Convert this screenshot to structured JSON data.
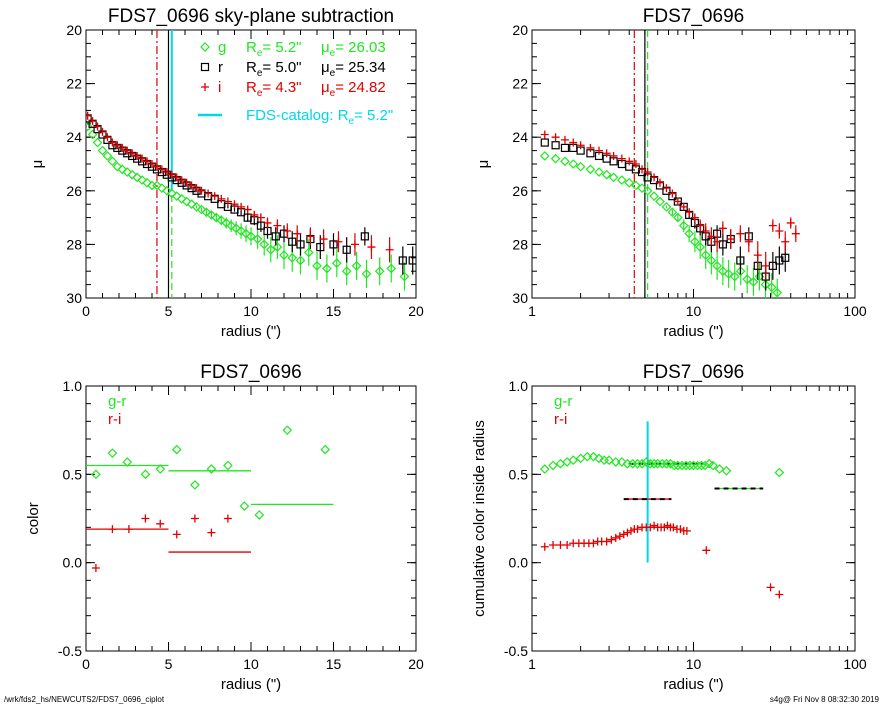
{
  "colors": {
    "g": "#22e622",
    "r": "#000000",
    "i": "#e00000",
    "fds": "#00d8e8",
    "axis": "#000000"
  },
  "footer": {
    "left": "/wrk/fds2_hs/NEWCUTS2/FDS7_0696_ciplot",
    "right": "s4g@  Fri Nov  8 08:32:30 2019"
  },
  "chart_data": [
    {
      "id": "profile_linear",
      "type": "scatter",
      "title": "FDS7_0696 sky-plane subtraction",
      "xlabel": "radius (\")",
      "ylabel": "μ",
      "xscale": "linear",
      "xlim": [
        0,
        20
      ],
      "ylim": [
        30,
        20
      ],
      "xticks": [
        0,
        5,
        10,
        15,
        20
      ],
      "xticklabels": [
        "0",
        "5",
        "10",
        "15",
        "20"
      ],
      "yticks": [
        20,
        22,
        24,
        26,
        28,
        30
      ],
      "yticklabels": [
        "20",
        "22",
        "24",
        "26",
        "28",
        "30"
      ],
      "legend": {
        "placement": "top-right",
        "entries": [
          {
            "symbol": "diamond",
            "band": "g",
            "name": "g",
            "re_label": "R",
            "re_sub": "e",
            "re_value": "=  5.2\"",
            "mu_label": "μ",
            "mu_sub": "e",
            "mu_value": "= 26.03"
          },
          {
            "symbol": "square",
            "band": "r",
            "name": "r",
            "re_label": "R",
            "re_sub": "e",
            "re_value": "=  5.0\"",
            "mu_label": "μ",
            "mu_sub": "e",
            "mu_value": "= 25.34"
          },
          {
            "symbol": "plus",
            "band": "i",
            "name": "i",
            "re_label": "R",
            "re_sub": "e",
            "re_value": "=  4.3\"",
            "mu_label": "μ",
            "mu_sub": "e",
            "mu_value": "= 24.82"
          }
        ],
        "catalog": {
          "label": "FDS-catalog: R",
          "sub": "e",
          "value": "=   5.2\""
        }
      },
      "vlines": [
        {
          "x": 4.3,
          "band": "i",
          "style": "dashdot"
        },
        {
          "x": 5.0,
          "band": "r",
          "style": "solid"
        },
        {
          "x": 5.2,
          "band": "g",
          "style": "dashed"
        },
        {
          "x": 5.2,
          "band": "fds",
          "style": "solid",
          "ymin": 26.0
        }
      ],
      "series": [
        {
          "name": "g",
          "marker": "diamond",
          "x": [
            0.1,
            0.4,
            0.7,
            1.0,
            1.3,
            1.6,
            1.9,
            2.2,
            2.5,
            2.8,
            3.1,
            3.4,
            3.7,
            4.0,
            4.3,
            4.6,
            4.9,
            5.2,
            5.5,
            5.8,
            6.1,
            6.4,
            6.7,
            7.0,
            7.3,
            7.6,
            7.9,
            8.2,
            8.5,
            8.8,
            9.1,
            9.4,
            9.7,
            10.0,
            10.4,
            10.8,
            11.2,
            11.6,
            12.0,
            12.5,
            13.0,
            13.5,
            14.0,
            14.6,
            15.2,
            15.8,
            16.4,
            17.0,
            17.8,
            18.5,
            19.3
          ],
          "y": [
            23.6,
            23.9,
            24.2,
            24.5,
            24.7,
            24.9,
            25.1,
            25.2,
            25.3,
            25.4,
            25.5,
            25.6,
            25.7,
            25.8,
            25.8,
            25.9,
            26.0,
            26.1,
            26.2,
            26.3,
            26.4,
            26.5,
            26.6,
            26.7,
            26.8,
            26.9,
            27.0,
            27.1,
            27.2,
            27.3,
            27.4,
            27.5,
            27.6,
            27.7,
            27.8,
            28.0,
            28.2,
            28.1,
            28.4,
            28.5,
            28.6,
            28.3,
            28.8,
            28.9,
            28.7,
            29.0,
            28.8,
            29.1,
            29.0,
            28.9,
            29.2
          ]
        },
        {
          "name": "r",
          "marker": "square",
          "x": [
            0.1,
            0.4,
            0.7,
            1.0,
            1.3,
            1.6,
            1.9,
            2.2,
            2.5,
            2.8,
            3.1,
            3.4,
            3.7,
            4.0,
            4.3,
            4.6,
            4.9,
            5.2,
            5.5,
            5.8,
            6.1,
            6.4,
            6.7,
            7.0,
            7.4,
            7.8,
            8.2,
            8.6,
            9.0,
            9.4,
            9.8,
            10.2,
            10.6,
            11.0,
            11.5,
            12.0,
            12.5,
            13.0,
            13.6,
            14.2,
            15.0,
            15.8,
            16.9,
            19.2,
            19.8
          ],
          "y": [
            23.3,
            23.5,
            23.7,
            23.9,
            24.1,
            24.3,
            24.4,
            24.5,
            24.6,
            24.7,
            24.8,
            24.9,
            25.0,
            25.1,
            25.2,
            25.3,
            25.4,
            25.5,
            25.6,
            25.7,
            25.8,
            25.9,
            26.0,
            26.1,
            26.2,
            26.3,
            26.5,
            26.6,
            26.7,
            26.8,
            27.0,
            27.1,
            27.3,
            27.5,
            27.7,
            27.6,
            27.9,
            28.0,
            27.8,
            28.1,
            28.0,
            28.2,
            27.7,
            28.6,
            28.6
          ]
        },
        {
          "name": "i",
          "marker": "plus",
          "x": [
            0.1,
            0.4,
            0.7,
            1.0,
            1.3,
            1.6,
            1.9,
            2.2,
            2.5,
            2.8,
            3.1,
            3.4,
            3.7,
            4.0,
            4.3,
            4.6,
            4.9,
            5.2,
            5.5,
            5.8,
            6.1,
            6.4,
            6.7,
            7.0,
            7.4,
            7.8,
            8.2,
            8.6,
            9.0,
            9.4,
            9.8,
            10.2,
            10.6,
            11.0,
            11.6,
            12.2,
            12.8,
            13.6,
            14.4,
            15.3,
            16.3,
            17.3,
            18.4
          ],
          "y": [
            23.2,
            23.4,
            23.6,
            23.8,
            24.0,
            24.2,
            24.3,
            24.4,
            24.5,
            24.6,
            24.7,
            24.8,
            24.9,
            25.0,
            25.1,
            25.2,
            25.3,
            25.4,
            25.5,
            25.6,
            25.7,
            25.8,
            25.9,
            26.0,
            26.1,
            26.2,
            26.3,
            26.4,
            26.5,
            26.6,
            26.7,
            26.9,
            27.0,
            27.2,
            27.3,
            27.5,
            27.6,
            27.7,
            27.8,
            27.9,
            28.0,
            28.1,
            28.2
          ]
        }
      ]
    },
    {
      "id": "profile_log",
      "type": "scatter",
      "title": "FDS7_0696",
      "xlabel": "radius (\")",
      "ylabel": "μ",
      "xscale": "log",
      "xlim": [
        1,
        100
      ],
      "ylim": [
        30,
        20
      ],
      "xticks": [
        1,
        10,
        100
      ],
      "xticklabels": [
        "1",
        "10",
        "100"
      ],
      "yticks": [
        20,
        22,
        24,
        26,
        28,
        30
      ],
      "yticklabels": [
        "20",
        "22",
        "24",
        "26",
        "28",
        "30"
      ],
      "vlines": [
        {
          "x": 4.3,
          "band": "i",
          "style": "dashdot"
        },
        {
          "x": 5.0,
          "band": "r",
          "style": "solid"
        },
        {
          "x": 5.2,
          "band": "g",
          "style": "dashed"
        }
      ],
      "series": [
        {
          "name": "g",
          "marker": "diamond",
          "x": [
            1.2,
            1.4,
            1.6,
            1.8,
            2.0,
            2.3,
            2.6,
            2.9,
            3.2,
            3.6,
            4.0,
            4.4,
            4.8,
            5.2,
            5.7,
            6.2,
            6.8,
            7.4,
            8.0,
            8.7,
            9.4,
            10.2,
            11.0,
            11.9,
            12.9,
            14.0,
            15.2,
            16.5,
            18.0,
            19.6,
            21.5,
            23.5,
            25.6,
            27.9,
            30.5,
            33.0
          ],
          "y": [
            24.7,
            24.8,
            24.9,
            25.0,
            25.1,
            25.2,
            25.3,
            25.4,
            25.5,
            25.6,
            25.7,
            25.8,
            25.9,
            26.0,
            26.2,
            26.4,
            26.6,
            26.8,
            27.0,
            27.3,
            27.6,
            27.9,
            28.1,
            28.4,
            28.6,
            28.8,
            29.0,
            29.1,
            29.2,
            29.0,
            29.3,
            29.4,
            29.2,
            29.5,
            29.6,
            29.8
          ]
        },
        {
          "name": "r",
          "marker": "square",
          "x": [
            1.2,
            1.4,
            1.6,
            1.8,
            2.0,
            2.3,
            2.6,
            2.9,
            3.2,
            3.6,
            4.0,
            4.4,
            4.8,
            5.2,
            5.7,
            6.2,
            6.8,
            7.4,
            8.0,
            8.7,
            9.4,
            10.2,
            11.0,
            11.9,
            12.9,
            14.0,
            15.2,
            17.0,
            19.5,
            22.0,
            25.0,
            28.0,
            31.0,
            34.0,
            37.0
          ],
          "y": [
            24.2,
            24.3,
            24.4,
            24.4,
            24.5,
            24.6,
            24.7,
            24.8,
            24.9,
            25.0,
            25.1,
            25.2,
            25.3,
            25.5,
            25.6,
            25.8,
            26.0,
            26.2,
            26.4,
            26.6,
            26.9,
            27.2,
            27.4,
            27.7,
            27.9,
            27.6,
            28.0,
            27.8,
            28.6,
            27.7,
            28.8,
            29.2,
            28.8,
            28.6,
            28.5
          ]
        },
        {
          "name": "i",
          "marker": "plus",
          "x": [
            1.2,
            1.4,
            1.6,
            1.8,
            2.0,
            2.3,
            2.6,
            2.9,
            3.2,
            3.6,
            4.0,
            4.4,
            4.8,
            5.2,
            5.7,
            6.2,
            6.8,
            7.4,
            8.0,
            8.7,
            9.4,
            10.2,
            11.0,
            11.9,
            12.9,
            14.0,
            15.2,
            17.0,
            19.5,
            22.0,
            25.0,
            28.0,
            31.0,
            34.0,
            37.0,
            40.0,
            43.0
          ],
          "y": [
            23.9,
            24.0,
            24.1,
            24.2,
            24.3,
            24.4,
            24.5,
            24.6,
            24.7,
            24.8,
            24.9,
            25.0,
            25.2,
            25.3,
            25.5,
            25.7,
            25.9,
            26.1,
            26.4,
            26.6,
            26.8,
            27.0,
            27.3,
            27.5,
            27.7,
            27.9,
            27.4,
            27.8,
            27.6,
            27.9,
            28.4,
            28.8,
            27.3,
            27.5,
            27.9,
            27.2,
            27.6
          ]
        }
      ]
    },
    {
      "id": "color_linear",
      "type": "scatter",
      "title": "FDS7_0696",
      "xlabel": "radius (\")",
      "ylabel": "color",
      "xscale": "linear",
      "xlim": [
        0,
        20
      ],
      "ylim": [
        -0.5,
        1.0
      ],
      "xticks": [
        0,
        5,
        10,
        15,
        20
      ],
      "xticklabels": [
        "0",
        "5",
        "10",
        "15",
        "20"
      ],
      "yticks": [
        -0.5,
        0.0,
        0.5,
        1.0
      ],
      "yticklabels": [
        "-0.5",
        "0.0",
        "0.5",
        "1.0"
      ],
      "legend": {
        "placement": "top-left",
        "entries": [
          {
            "band": "g",
            "label": "g-r"
          },
          {
            "band": "i",
            "label": "r-i"
          }
        ]
      },
      "series": [
        {
          "name": "g-r",
          "marker": "diamond",
          "x": [
            0.6,
            1.6,
            2.5,
            3.6,
            4.5,
            5.5,
            6.6,
            7.6,
            8.6,
            9.6,
            10.5,
            12.2,
            14.5
          ],
          "y": [
            0.5,
            0.62,
            0.57,
            0.5,
            0.53,
            0.64,
            0.44,
            0.53,
            0.55,
            0.32,
            0.27,
            0.75,
            0.64
          ]
        },
        {
          "name": "r-i",
          "marker": "plus",
          "x": [
            0.6,
            1.6,
            2.6,
            3.6,
            4.5,
            5.5,
            6.6,
            7.6,
            8.6
          ],
          "y": [
            -0.03,
            0.19,
            0.19,
            0.25,
            0.22,
            0.16,
            0.25,
            0.17,
            0.25
          ]
        }
      ],
      "hlines": [
        {
          "band": "g",
          "x0": 0,
          "x1": 5,
          "y": 0.55
        },
        {
          "band": "g",
          "x0": 5,
          "x1": 10,
          "y": 0.52
        },
        {
          "band": "g",
          "x0": 10,
          "x1": 15,
          "y": 0.33
        },
        {
          "band": "i",
          "x0": 0,
          "x1": 5,
          "y": 0.19
        },
        {
          "band": "i",
          "x0": 5,
          "x1": 10,
          "y": 0.06
        }
      ]
    },
    {
      "id": "cumulative_color_log",
      "type": "scatter",
      "title": "FDS7_0696",
      "xlabel": "radius (\")",
      "ylabel": "cumulative color inside radius",
      "xscale": "log",
      "xlim": [
        1,
        100
      ],
      "ylim": [
        -0.5,
        1.0
      ],
      "xticks": [
        1,
        10,
        100
      ],
      "xticklabels": [
        "1",
        "10",
        "100"
      ],
      "yticks": [
        -0.5,
        0.0,
        0.5,
        1.0
      ],
      "yticklabels": [
        "-0.5",
        "0.0",
        "0.5",
        "1.0"
      ],
      "legend": {
        "placement": "top-left",
        "entries": [
          {
            "band": "g",
            "label": "g-r"
          },
          {
            "band": "i",
            "label": "r-i"
          }
        ]
      },
      "vlines": [
        {
          "x": 5.2,
          "band": "fds",
          "style": "solid",
          "ymin": 0.0,
          "ymax": 0.8
        }
      ],
      "series": [
        {
          "name": "g-r",
          "marker": "diamond",
          "x": [
            1.2,
            1.35,
            1.5,
            1.65,
            1.8,
            2.0,
            2.2,
            2.4,
            2.6,
            2.8,
            3.0,
            3.3,
            3.6,
            3.9,
            4.2,
            4.5,
            4.8,
            5.1,
            5.4,
            5.7,
            6.0,
            6.4,
            6.8,
            7.2,
            7.6,
            8.0,
            8.5,
            9.0,
            9.5,
            10.0,
            10.6,
            11.2,
            11.8,
            12.5,
            13.2,
            14.5,
            16.0,
            34.0
          ],
          "y": [
            0.53,
            0.55,
            0.56,
            0.57,
            0.58,
            0.59,
            0.6,
            0.6,
            0.59,
            0.58,
            0.58,
            0.57,
            0.57,
            0.56,
            0.56,
            0.56,
            0.56,
            0.57,
            0.56,
            0.56,
            0.56,
            0.56,
            0.56,
            0.56,
            0.55,
            0.55,
            0.55,
            0.55,
            0.55,
            0.55,
            0.55,
            0.55,
            0.55,
            0.56,
            0.55,
            0.53,
            0.52,
            0.51
          ]
        },
        {
          "name": "r-i",
          "marker": "plus",
          "x": [
            1.2,
            1.35,
            1.5,
            1.65,
            1.8,
            1.95,
            2.1,
            2.25,
            2.4,
            2.55,
            2.7,
            2.9,
            3.1,
            3.3,
            3.5,
            3.7,
            3.9,
            4.1,
            4.3,
            4.5,
            4.8,
            5.1,
            5.4,
            5.7,
            6.0,
            6.3,
            6.6,
            6.9,
            7.2,
            7.5,
            7.9,
            8.3,
            8.7,
            9.1,
            12.0,
            30.0,
            34.0
          ],
          "y": [
            0.09,
            0.1,
            0.1,
            0.1,
            0.11,
            0.11,
            0.11,
            0.11,
            0.11,
            0.12,
            0.12,
            0.12,
            0.13,
            0.14,
            0.15,
            0.16,
            0.17,
            0.18,
            0.19,
            0.19,
            0.2,
            0.2,
            0.2,
            0.21,
            0.2,
            0.2,
            0.2,
            0.21,
            0.2,
            0.2,
            0.19,
            0.19,
            0.18,
            0.18,
            0.07,
            -0.14,
            -0.18
          ]
        }
      ],
      "hlines": [
        {
          "band": "g",
          "x0": 4.0,
          "x1": 11.5,
          "y": 0.56,
          "dashed_black": true
        },
        {
          "band": "g",
          "x0": 13.5,
          "x1": 27.0,
          "y": 0.42,
          "dashed_black": true
        },
        {
          "band": "i",
          "x0": 3.7,
          "x1": 7.3,
          "y": 0.36,
          "dashed_black": true
        }
      ]
    }
  ]
}
